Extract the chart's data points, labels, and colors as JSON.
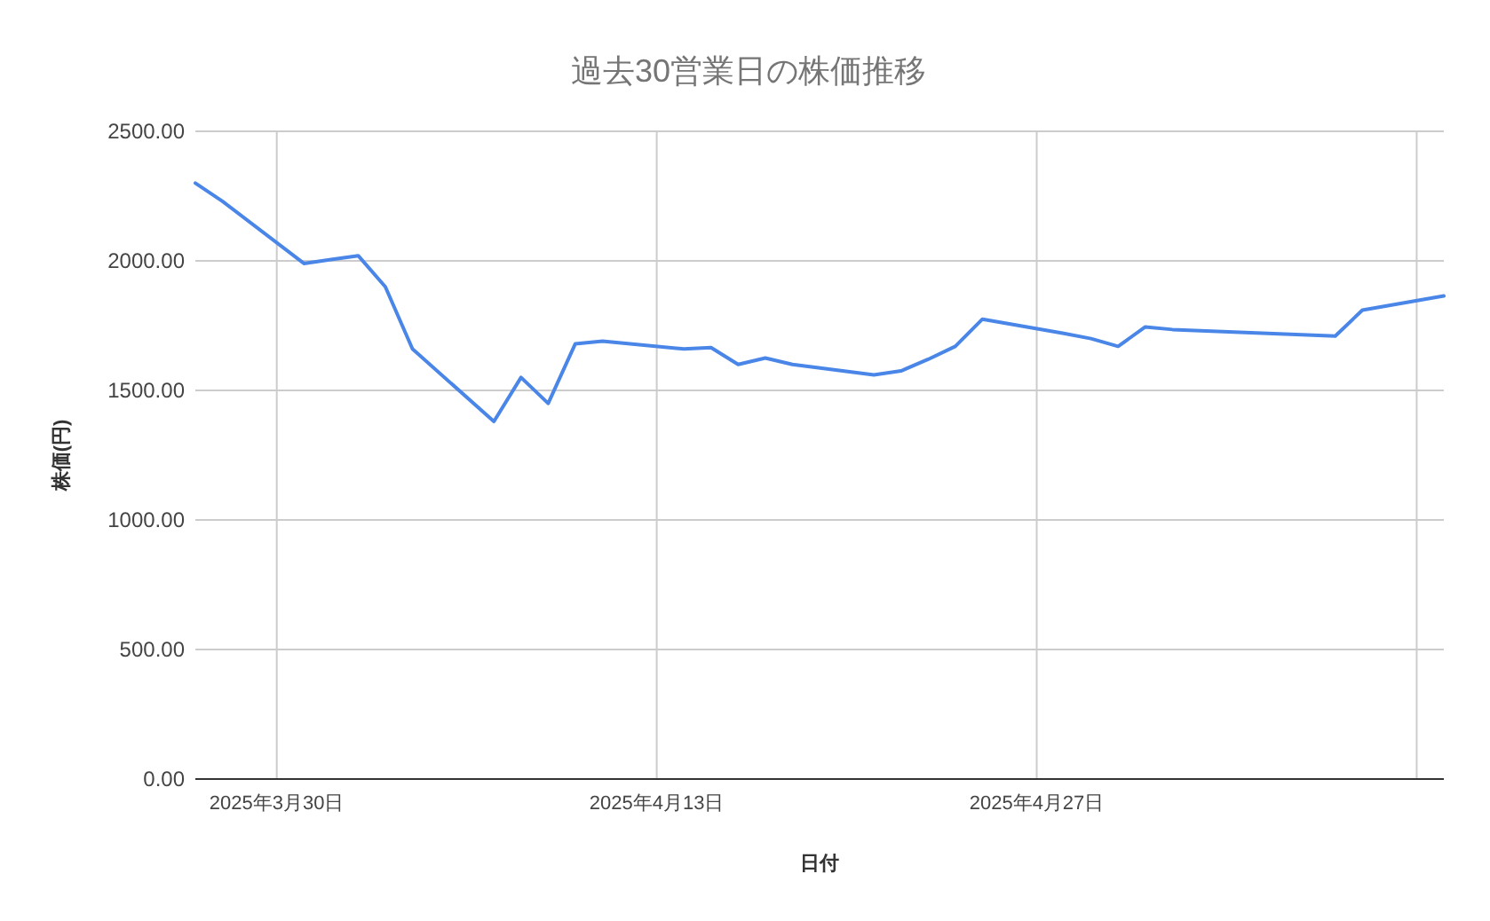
{
  "chart_data": {
    "type": "line",
    "title": "過去30営業日の株価推移",
    "xlabel": "日付",
    "ylabel": "株価(円)",
    "x": [
      "2025-03-27",
      "2025-03-28",
      "2025-03-31",
      "2025-04-01",
      "2025-04-02",
      "2025-04-03",
      "2025-04-04",
      "2025-04-07",
      "2025-04-08",
      "2025-04-09",
      "2025-04-10",
      "2025-04-11",
      "2025-04-14",
      "2025-04-15",
      "2025-04-16",
      "2025-04-17",
      "2025-04-18",
      "2025-04-21",
      "2025-04-22",
      "2025-04-23",
      "2025-04-24",
      "2025-04-25",
      "2025-04-28",
      "2025-04-29",
      "2025-04-30",
      "2025-05-01",
      "2025-05-02",
      "2025-05-08",
      "2025-05-09",
      "2025-05-12"
    ],
    "series": [
      {
        "color": "#4a86e8",
        "values": [
          2300,
          2230,
          1990,
          2005,
          2020,
          1900,
          1660,
          1380,
          1550,
          1450,
          1680,
          1690,
          1660,
          1665,
          1600,
          1625,
          1600,
          1560,
          1575,
          1620,
          1670,
          1775,
          1720,
          1700,
          1670,
          1745,
          1735,
          1710,
          1810,
          1865
        ]
      }
    ],
    "xlim": [
      "2025-03-27",
      "2025-05-12"
    ],
    "xticks": [
      {
        "value": "2025-03-30",
        "label": "2025年3月30日"
      },
      {
        "value": "2025-04-13",
        "label": "2025年4月13日"
      },
      {
        "value": "2025-04-27",
        "label": "2025年4月27日"
      },
      {
        "value": "2025-05-11",
        "label": null
      }
    ],
    "ylim": [
      0,
      2500
    ],
    "yticks": [
      {
        "value": 0,
        "label": "0.00"
      },
      {
        "value": 500,
        "label": "500.00"
      },
      {
        "value": 1000,
        "label": "1000.00"
      },
      {
        "value": 1500,
        "label": "1500.00"
      },
      {
        "value": 2000,
        "label": "2000.00"
      },
      {
        "value": 2500,
        "label": "2500.00"
      }
    ],
    "grid": true,
    "marker": "none",
    "line_style": "solid"
  }
}
